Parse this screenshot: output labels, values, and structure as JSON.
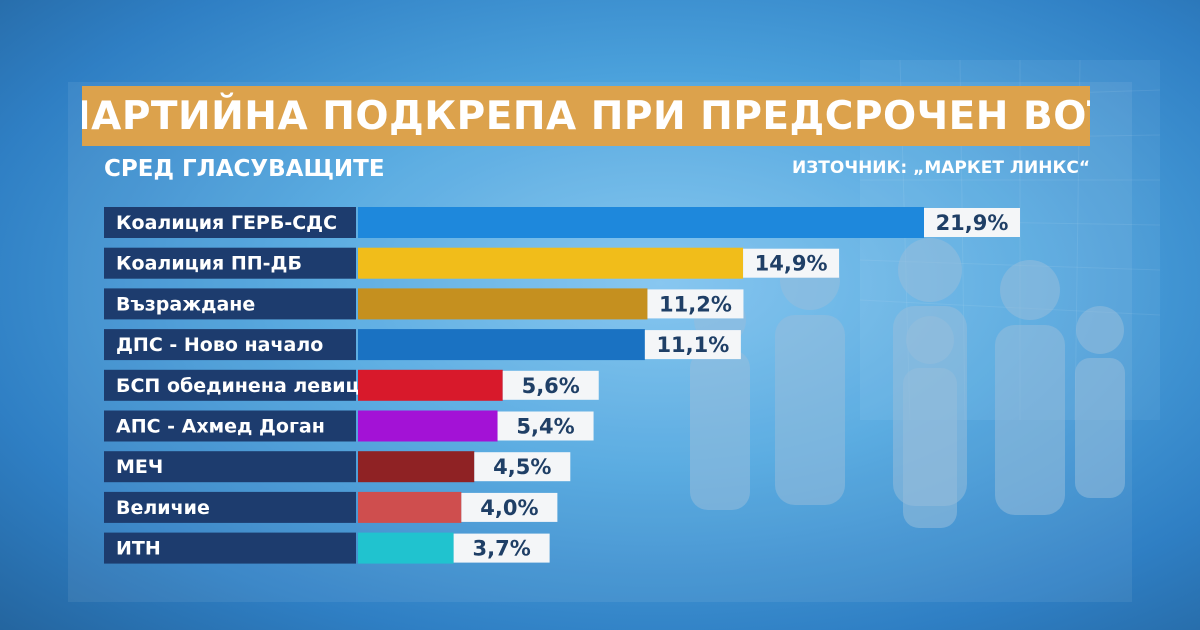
{
  "header": {
    "title": "ПАРТИЙНА ПОДКРЕПА ПРИ ПРЕДСРОЧЕН ВОТ",
    "subtitle": "СРЕД ГЛАСУВАЩИТЕ",
    "source": "ИЗТОЧНИК: „МАРКЕТ ЛИНКС“"
  },
  "chart_data": {
    "type": "bar",
    "orientation": "horizontal",
    "title": "ПАРТИЙНА ПОДКРЕПА ПРИ ПРЕДСРОЧЕН ВОТ",
    "subtitle": "СРЕД ГЛАСУВАЩИТЕ",
    "categories": [
      "Коалиция ГЕРБ-СДС",
      "Коалиция ПП-ДБ",
      "Възраждане",
      "ДПС - Ново начало",
      "БСП обединена левица",
      "АПС - Ахмед Доган",
      "МЕЧ",
      "Величие",
      "ИТН"
    ],
    "values": [
      21.9,
      14.9,
      11.2,
      11.1,
      5.6,
      5.4,
      4.5,
      4.0,
      3.7
    ],
    "value_labels": [
      "21,9%",
      "14,9%",
      "11,2%",
      "11,1%",
      "5,6%",
      "5,4%",
      "4,5%",
      "4,0%",
      "3,7%"
    ],
    "colors": [
      "#1e88dc",
      "#f1bd1a",
      "#c5901f",
      "#1a72c2",
      "#d8192b",
      "#a312d6",
      "#8f2224",
      "#cf4e4e",
      "#20c3cf"
    ],
    "label_bg": "#1d3c6e",
    "xlim": [
      0,
      21.9
    ]
  }
}
